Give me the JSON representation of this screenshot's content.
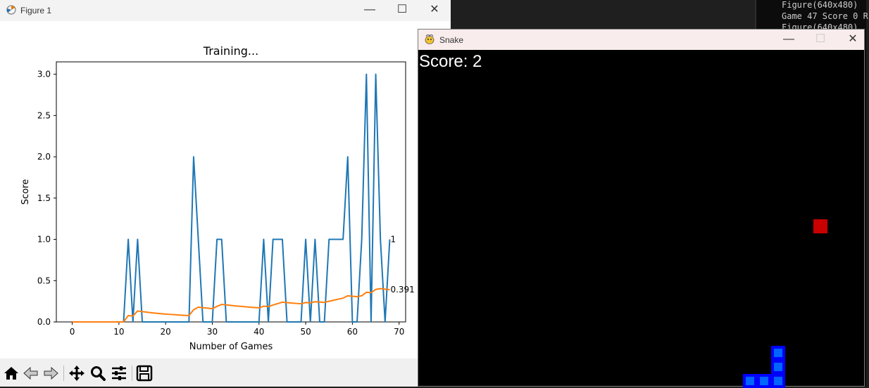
{
  "terminal": {
    "lines": [
      "Figure(640x480)",
      "Game 47 Score 0 R",
      "Figure(640x480)"
    ]
  },
  "figure_window": {
    "title": "Figure 1",
    "icon": "matplotlib-icon",
    "controls": {
      "minimize": "—",
      "maximize": "☐",
      "close": "✕"
    },
    "toolbar": [
      {
        "name": "home",
        "icon": "home-icon"
      },
      {
        "name": "back",
        "icon": "back-arrow-icon"
      },
      {
        "name": "forward",
        "icon": "forward-arrow-icon"
      },
      {
        "name": "pan",
        "icon": "move-icon"
      },
      {
        "name": "zoom",
        "icon": "zoom-icon"
      },
      {
        "name": "configure-subplots",
        "icon": "sliders-icon"
      },
      {
        "name": "save",
        "icon": "save-icon"
      }
    ]
  },
  "chart_data": {
    "type": "line",
    "title": "Training...",
    "xlabel": "Number of Games",
    "ylabel": "Score",
    "xlim": [
      -3.4,
      71.4
    ],
    "ylim": [
      0,
      3.15
    ],
    "xticks": [
      0,
      10,
      20,
      30,
      40,
      50,
      60,
      70
    ],
    "yticks": [
      0.0,
      0.5,
      1.0,
      1.5,
      2.0,
      2.5,
      3.0
    ],
    "ytick_labels": [
      "0.0",
      "0.5",
      "1.0",
      "1.5",
      "2.0",
      "2.5",
      "3.0"
    ],
    "grid": false,
    "colors": {
      "scores": "#1f77b4",
      "mean_scores": "#ff7f0e"
    },
    "series": [
      {
        "values": [
          0,
          0,
          0,
          0,
          0,
          0,
          0,
          0,
          0,
          0,
          0,
          0,
          1,
          0,
          1,
          0,
          0,
          0,
          0,
          0,
          0,
          0,
          0,
          0,
          0,
          0,
          2,
          1,
          0,
          0,
          0,
          1,
          1,
          0,
          0,
          0,
          0,
          0,
          0,
          0,
          0,
          1,
          0,
          1,
          1,
          1,
          0,
          0,
          0,
          0,
          1,
          0,
          1,
          0,
          0,
          1,
          1,
          1,
          1,
          2,
          0,
          0,
          1,
          3,
          0,
          3,
          1,
          0,
          1
        ]
      },
      {
        "values": [
          0,
          0,
          0,
          0,
          0,
          0,
          0,
          0,
          0,
          0,
          0,
          0,
          0.077,
          0.071,
          0.133,
          0.125,
          0.118,
          0.111,
          0.105,
          0.1,
          0.095,
          0.091,
          0.087,
          0.083,
          0.08,
          0.077,
          0.148,
          0.179,
          0.172,
          0.167,
          0.161,
          0.188,
          0.212,
          0.206,
          0.2,
          0.194,
          0.189,
          0.184,
          0.179,
          0.175,
          0.171,
          0.19,
          0.186,
          0.205,
          0.222,
          0.239,
          0.234,
          0.229,
          0.224,
          0.22,
          0.235,
          0.231,
          0.245,
          0.241,
          0.236,
          0.25,
          0.263,
          0.276,
          0.288,
          0.317,
          0.311,
          0.306,
          0.317,
          0.359,
          0.354,
          0.394,
          0.403,
          0.397,
          0.391
        ]
      }
    ],
    "annotations": [
      {
        "x": 68,
        "y": 1,
        "text": "1"
      },
      {
        "x": 68,
        "y": 0.391,
        "text": "0.391"
      }
    ]
  },
  "snake_window": {
    "title": "Snake",
    "icon": "pygame-icon",
    "controls": {
      "minimize": "—",
      "maximize": "☐",
      "close": "✕"
    },
    "score_text": "Score: 2",
    "colors": {
      "snake_outer": "#0000ff",
      "snake_inner": "#0064ff",
      "food": "#c80000",
      "background": "#000000"
    },
    "grid_block": 20,
    "food": {
      "col": 28,
      "row": 12
    },
    "snake": [
      {
        "col": 25,
        "row": 23
      },
      {
        "col": 25,
        "row": 22
      },
      {
        "col": 25,
        "row": 21
      },
      {
        "col": 24,
        "row": 23
      },
      {
        "col": 23,
        "row": 23
      }
    ]
  }
}
